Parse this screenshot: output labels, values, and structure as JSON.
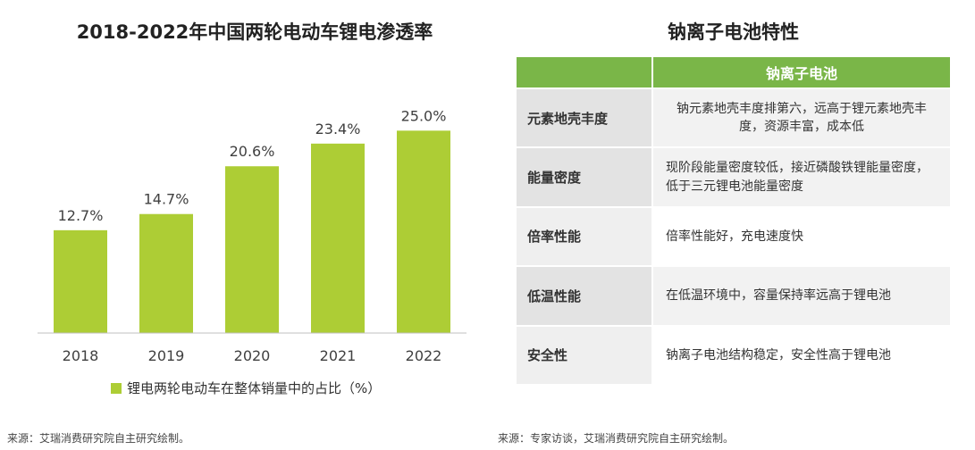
{
  "chart_data": {
    "type": "bar",
    "title": "2018-2022年中国两轮电动车锂电渗透率",
    "categories": [
      "2018",
      "2019",
      "2020",
      "2021",
      "2022"
    ],
    "values": [
      12.7,
      14.7,
      20.6,
      23.4,
      25.0
    ],
    "value_labels": [
      "12.7%",
      "14.7%",
      "20.6%",
      "23.4%",
      "25.0%"
    ],
    "series": [
      {
        "name": "锂电两轮电动车在整体销量中的占比（%）",
        "values": [
          12.7,
          14.7,
          20.6,
          23.4,
          25.0
        ]
      }
    ],
    "ylim": [
      0,
      30
    ],
    "xlabel": "",
    "ylabel": "",
    "grid": false,
    "legend_position": "bottom",
    "bar_color": "#adcd35"
  },
  "legend": {
    "label": "锂电两轮电动车在整体销量中的占比（%）",
    "color": "#adcd35"
  },
  "source_left": "来源：艾瑞消费研究院自主研究绘制。",
  "table": {
    "title": "钠离子电池特性",
    "header": "钠离子电池",
    "header_color": "#7ab648",
    "rows": [
      {
        "label": "元素地壳丰度",
        "desc": "钠元素地壳丰度排第六，远高于锂元素地壳丰度，资源丰富，成本低"
      },
      {
        "label": "能量密度",
        "desc": "现阶段能量密度较低，接近磷酸铁锂能量密度，低于三元锂电池能量密度"
      },
      {
        "label": "倍率性能",
        "desc": "倍率性能好，充电速度快"
      },
      {
        "label": "低温性能",
        "desc": "在低温环境中，容量保持率远高于锂电池"
      },
      {
        "label": "安全性",
        "desc": "钠离子电池结构稳定，安全性高于锂电池"
      }
    ]
  },
  "source_right": "来源：专家访谈，艾瑞消费研究院自主研究绘制。"
}
